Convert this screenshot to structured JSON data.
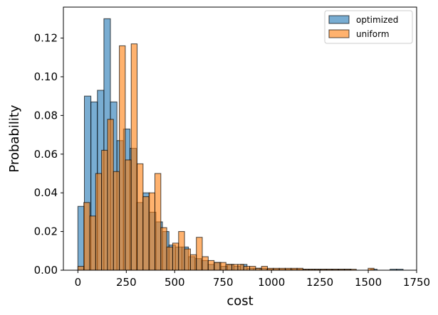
{
  "chart_data": {
    "type": "bar",
    "title": "",
    "xlabel": "cost",
    "ylabel": "Probability",
    "xlim": [
      -75,
      1750
    ],
    "ylim": [
      0,
      0.136
    ],
    "xticks": [
      0,
      250,
      500,
      750,
      1000,
      1250,
      1500,
      1750
    ],
    "yticks": [
      0.0,
      0.02,
      0.04,
      0.06,
      0.08,
      0.1,
      0.12
    ],
    "ytick_labels": [
      "0.00",
      "0.02",
      "0.04",
      "0.06",
      "0.08",
      "0.10",
      "0.12"
    ],
    "legend_position": "top-right",
    "grid": false,
    "series": [
      {
        "name": "optimized",
        "color": "#1f77b4",
        "bin_width": 33.6,
        "bin_start": 0,
        "values": [
          0.033,
          0.09,
          0.087,
          0.093,
          0.13,
          0.087,
          0.067,
          0.073,
          0.063,
          0.035,
          0.04,
          0.03,
          0.025,
          0.02,
          0.013,
          0.012,
          0.012,
          0.007,
          0.006,
          0.005,
          0.003,
          0.004,
          0.002,
          0.003,
          0.002,
          0.003,
          0.001,
          0.001,
          0.001,
          0.0005,
          0.0005,
          0.0005,
          0.0005,
          0.0005,
          0.0005,
          0.0005,
          0.0005,
          0.0005,
          0.0005,
          0.0005,
          0.0005,
          0.0005,
          0,
          0,
          0,
          0.0005,
          0,
          0,
          0.0005,
          0.0005
        ]
      },
      {
        "name": "uniform",
        "color": "#ff7f0e",
        "bin_width": 30.6,
        "bin_start": 0,
        "values": [
          0.002,
          0.035,
          0.028,
          0.05,
          0.062,
          0.078,
          0.051,
          0.116,
          0.057,
          0.117,
          0.055,
          0.038,
          0.04,
          0.05,
          0.022,
          0.012,
          0.014,
          0.02,
          0.011,
          0.008,
          0.017,
          0.007,
          0.005,
          0.004,
          0.004,
          0.003,
          0.003,
          0.003,
          0.002,
          0.002,
          0.001,
          0.002,
          0.001,
          0.001,
          0.001,
          0.001,
          0.001,
          0.001,
          0.0005,
          0.0005,
          0.0005,
          0.0005,
          0.0005,
          0.0005,
          0.0005,
          0.0005,
          0.0005,
          0,
          0,
          0.001
        ]
      }
    ]
  }
}
